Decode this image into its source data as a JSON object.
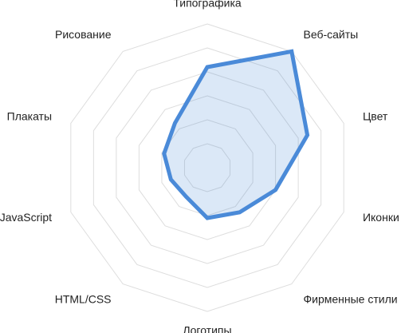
{
  "chart_data": {
    "type": "radar",
    "categories": [
      "Типографика",
      "Веб-сайты",
      "Цвет",
      "Иконки",
      "Фирменные стили",
      "Логотипы",
      "HTML/CSS",
      "JavaScript",
      "Плакаты",
      "Рисование"
    ],
    "series": [
      {
        "color": "#4a8ad8",
        "values": [
          4.2,
          6.0,
          4.4,
          3.0,
          2.3,
          2.1,
          1.5,
          1.6,
          1.9,
          2.3
        ]
      }
    ],
    "ylim": [
      0,
      6
    ],
    "yticks": [
      1,
      2,
      3,
      4,
      5,
      6
    ],
    "grid": true
  }
}
